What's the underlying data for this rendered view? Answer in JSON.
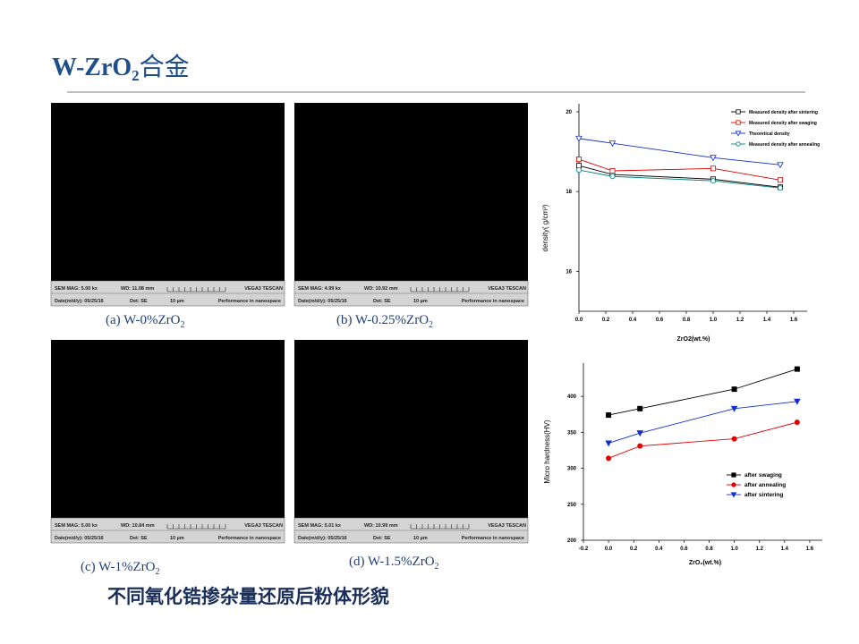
{
  "title": {
    "text": "W-ZrO",
    "sub": "2",
    "suffix": "合金"
  },
  "images": [
    {
      "caption": {
        "text": "(a) W-0%ZrO",
        "sub": "2"
      },
      "info": {
        "mag": "SEM MAG: 5.00 kx",
        "wd": "WD: 11.08 mm",
        "brand": "VEGA3 TESCAN",
        "date": "Date(m/d/y): 05/25/16",
        "det": "Det: SE",
        "scale": "10 µm",
        "slogan": "Performance in nanospace"
      }
    },
    {
      "caption": {
        "text": "(b) W-0.25%ZrO",
        "sub": "2"
      },
      "info": {
        "mag": "SEM MAG: 4.99 kx",
        "wd": "WD: 10.92 mm",
        "brand": "VEGA3 TESCAN",
        "date": "Date(m/d/y): 05/25/16",
        "det": "Det: SE",
        "scale": "10 µm",
        "slogan": "Performance in nanospace"
      }
    },
    {
      "caption": {
        "text": "(c) W-1%ZrO",
        "sub": "2"
      },
      "info": {
        "mag": "SEM MAG: 5.00 kx",
        "wd": "WD: 10.84 mm",
        "brand": "VEGA3 TESCAN",
        "date": "Date(m/d/y): 05/25/16",
        "det": "Det: SE",
        "scale": "10 µm",
        "slogan": "Performance in nanospace"
      }
    },
    {
      "caption": {
        "text": "(d) W-1.5%ZrO",
        "sub": "2"
      },
      "info": {
        "mag": "SEM MAG: 5.01 kx",
        "wd": "WD: 10.99 mm",
        "brand": "VEGA3 TESCAN",
        "date": "Date(m/d/y): 05/25/16",
        "det": "Det: SE",
        "scale": "10 µm",
        "slogan": "Performance in nanospace"
      }
    }
  ],
  "footer": "不同氧化锆掺杂量还原后粉体形貌",
  "chart_data": [
    {
      "type": "line",
      "x_label": "ZrO2(wt.%)",
      "y_label": "density( g/cm³)",
      "x": [
        0,
        0.25,
        1,
        1.5
      ],
      "xlim": [
        0,
        1.7
      ],
      "xticks": [
        {
          "value": 0,
          "label": "0.0"
        },
        0.2,
        0.4,
        0.6,
        0.8,
        {
          "value": 1,
          "label": "1.0"
        },
        1.2,
        1.4,
        1.6
      ],
      "ylim": [
        15,
        20
      ],
      "yticks": [
        16,
        18,
        20
      ],
      "legend": "upper right",
      "marker_filled": false,
      "series": [
        {
          "name": "Measured density after sintering",
          "color": "#000000",
          "marker": "square",
          "values": [
            18.65,
            18.43,
            18.31,
            18.11
          ]
        },
        {
          "name": "Measured density after swaging",
          "color": "#e00000",
          "marker": "square",
          "values": [
            18.81,
            18.52,
            18.58,
            18.29
          ]
        },
        {
          "name": "Theoretical density",
          "color": "#1030d0",
          "marker": "triangle-down",
          "values": [
            19.33,
            19.21,
            18.85,
            18.67
          ]
        },
        {
          "name": "Measured density after annealing",
          "color": "#008080",
          "marker": "circle",
          "values": [
            18.54,
            18.38,
            18.27,
            18.09
          ]
        }
      ]
    },
    {
      "type": "line",
      "x_label": "ZrO₂(wt.%)",
      "y_label": "Micro hardness(HV)",
      "x": [
        0,
        0.25,
        1,
        1.5
      ],
      "xlim": [
        -0.2,
        1.7
      ],
      "xticks": [
        -0.2,
        {
          "value": 0,
          "label": "0.0"
        },
        0.2,
        0.4,
        0.6,
        0.8,
        {
          "value": 1,
          "label": "1.0"
        },
        1.2,
        1.4,
        1.6
      ],
      "ylim": [
        200,
        440
      ],
      "yticks": [
        200,
        250,
        300,
        350,
        400
      ],
      "legend": "lower right",
      "marker_filled": true,
      "series": [
        {
          "name": "after swaging",
          "color": "#000000",
          "marker": "square",
          "values": [
            374,
            383,
            410,
            438
          ]
        },
        {
          "name": "after annealing",
          "color": "#e00000",
          "marker": "circle",
          "values": [
            314,
            331,
            341,
            364
          ]
        },
        {
          "name": "after sintering",
          "color": "#1030d0",
          "marker": "triangle-down",
          "values": [
            335,
            349,
            383,
            393
          ]
        }
      ]
    }
  ]
}
